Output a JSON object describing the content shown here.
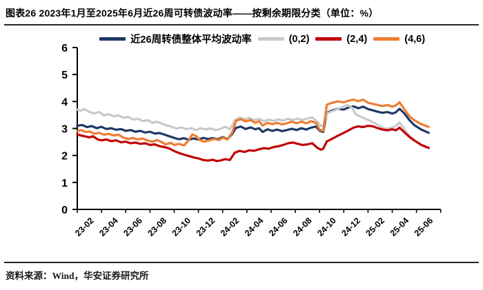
{
  "header": {
    "title": "图表26  2023年1月至2025年6月近26周可转债波动率——按剩余期限分类（单位：%）"
  },
  "footer": {
    "source": "资料来源：Wind，华安证券研究所"
  },
  "chart_data": {
    "type": "line",
    "title": "近26周可转债波动率——按剩余期限分类",
    "unit": "%",
    "xlabel": "",
    "ylabel": "",
    "ylim": [
      0,
      6
    ],
    "y_ticks": [
      0,
      1,
      2,
      3,
      4,
      5,
      6
    ],
    "grid": false,
    "legend_position": "top",
    "x_unit": "months since 2023-01",
    "x_tick_labels": [
      "23-02",
      "23-04",
      "23-06",
      "23-08",
      "23-10",
      "23-12",
      "24-02",
      "24-04",
      "24-06",
      "24-08",
      "24-10",
      "24-12",
      "25-02",
      "25-04",
      "25-06"
    ],
    "series": [
      {
        "name": "近26周转债整体平均波动率",
        "color": "#1F3864",
        "points": [
          [
            0,
            3.1
          ],
          [
            0.4,
            3.13
          ],
          [
            0.8,
            3.05
          ],
          [
            1.2,
            3.09
          ],
          [
            1.6,
            3.01
          ],
          [
            2,
            3.06
          ],
          [
            2.4,
            2.98
          ],
          [
            2.8,
            3.01
          ],
          [
            3.2,
            2.95
          ],
          [
            3.6,
            2.98
          ],
          [
            4,
            2.91
          ],
          [
            4.4,
            2.94
          ],
          [
            4.8,
            2.88
          ],
          [
            5.2,
            2.91
          ],
          [
            5.6,
            2.85
          ],
          [
            6,
            2.88
          ],
          [
            6.4,
            2.81
          ],
          [
            6.8,
            2.83
          ],
          [
            7.2,
            2.77
          ],
          [
            7.6,
            2.71
          ],
          [
            8,
            2.65
          ],
          [
            8.4,
            2.6
          ],
          [
            8.8,
            2.64
          ],
          [
            9.2,
            2.58
          ],
          [
            9.6,
            2.63
          ],
          [
            10,
            2.59
          ],
          [
            10.4,
            2.65
          ],
          [
            10.8,
            2.61
          ],
          [
            11.2,
            2.64
          ],
          [
            11.6,
            2.6
          ],
          [
            12,
            2.68
          ],
          [
            12.4,
            2.61
          ],
          [
            12.8,
            2.8
          ],
          [
            13.1,
            3.02
          ],
          [
            13.5,
            3.07
          ],
          [
            13.9,
            2.98
          ],
          [
            14.3,
            3.04
          ],
          [
            14.7,
            2.97
          ],
          [
            15,
            3.01
          ],
          [
            15.3,
            2.87
          ],
          [
            15.7,
            2.97
          ],
          [
            16.1,
            2.91
          ],
          [
            16.5,
            2.96
          ],
          [
            16.9,
            2.9
          ],
          [
            17.3,
            2.94
          ],
          [
            17.7,
            2.99
          ],
          [
            18.1,
            2.94
          ],
          [
            18.5,
            3.01
          ],
          [
            18.9,
            2.96
          ],
          [
            19.3,
            3.03
          ],
          [
            19.7,
            3.07
          ],
          [
            20,
            2.92
          ],
          [
            20.3,
            2.87
          ],
          [
            20.6,
            3.58
          ],
          [
            21,
            3.66
          ],
          [
            21.5,
            3.73
          ],
          [
            22,
            3.7
          ],
          [
            22.4,
            3.78
          ],
          [
            22.8,
            3.82
          ],
          [
            23.2,
            3.75
          ],
          [
            23.6,
            3.81
          ],
          [
            24,
            3.72
          ],
          [
            24.4,
            3.67
          ],
          [
            24.8,
            3.62
          ],
          [
            25.2,
            3.58
          ],
          [
            25.6,
            3.61
          ],
          [
            26,
            3.55
          ],
          [
            26.3,
            3.6
          ],
          [
            26.6,
            3.73
          ],
          [
            27,
            3.56
          ],
          [
            27.4,
            3.32
          ],
          [
            27.8,
            3.13
          ],
          [
            28.4,
            2.96
          ],
          [
            29,
            2.84
          ]
        ]
      },
      {
        "name": "(0,2)",
        "color": "#C9C9C9",
        "points": [
          [
            0,
            3.7
          ],
          [
            0.3,
            3.66
          ],
          [
            0.6,
            3.72
          ],
          [
            1,
            3.61
          ],
          [
            1.4,
            3.56
          ],
          [
            1.8,
            3.61
          ],
          [
            2.2,
            3.49
          ],
          [
            2.6,
            3.53
          ],
          [
            3,
            3.45
          ],
          [
            3.4,
            3.49
          ],
          [
            3.8,
            3.39
          ],
          [
            4.2,
            3.43
          ],
          [
            4.6,
            3.33
          ],
          [
            5,
            3.36
          ],
          [
            5.4,
            3.27
          ],
          [
            5.8,
            3.31
          ],
          [
            6.2,
            3.21
          ],
          [
            6.6,
            3.25
          ],
          [
            7,
            3.17
          ],
          [
            7.4,
            3.11
          ],
          [
            7.8,
            3.06
          ],
          [
            8.2,
            3.0
          ],
          [
            8.6,
            3.04
          ],
          [
            9,
            2.97
          ],
          [
            9.4,
            3.01
          ],
          [
            9.8,
            2.94
          ],
          [
            10.2,
            3.01
          ],
          [
            10.6,
            2.96
          ],
          [
            11,
            3.01
          ],
          [
            11.4,
            2.94
          ],
          [
            11.8,
            2.98
          ],
          [
            12.2,
            3.06
          ],
          [
            12.6,
            2.97
          ],
          [
            13,
            3.3
          ],
          [
            13.4,
            3.41
          ],
          [
            13.8,
            3.34
          ],
          [
            14.2,
            3.39
          ],
          [
            14.6,
            3.31
          ],
          [
            15,
            3.36
          ],
          [
            15.4,
            3.27
          ],
          [
            15.8,
            3.33
          ],
          [
            16.2,
            3.28
          ],
          [
            16.6,
            3.34
          ],
          [
            17,
            3.29
          ],
          [
            17.4,
            3.36
          ],
          [
            17.8,
            3.31
          ],
          [
            18.2,
            3.37
          ],
          [
            18.6,
            3.31
          ],
          [
            19,
            3.37
          ],
          [
            19.4,
            3.41
          ],
          [
            19.8,
            3.26
          ],
          [
            20.1,
            3.1
          ],
          [
            20.3,
            3.06
          ],
          [
            20.6,
            3.55
          ],
          [
            21,
            3.63
          ],
          [
            21.5,
            3.72
          ],
          [
            22,
            3.82
          ],
          [
            22.3,
            3.87
          ],
          [
            22.7,
            3.76
          ],
          [
            23,
            3.52
          ],
          [
            23.4,
            3.44
          ],
          [
            23.8,
            3.36
          ],
          [
            24.2,
            3.28
          ],
          [
            24.6,
            3.18
          ],
          [
            25,
            3.08
          ],
          [
            25.4,
            2.99
          ],
          [
            25.8,
            3.01
          ],
          [
            26.2,
            3.06
          ],
          [
            26.6,
            3.22
          ],
          [
            27,
            2.98
          ],
          [
            27.4,
            2.73
          ],
          [
            27.8,
            2.56
          ],
          [
            28.4,
            2.39
          ],
          [
            29,
            2.27
          ]
        ]
      },
      {
        "name": "(2,4)",
        "color": "#C00000",
        "points": [
          [
            0,
            2.78
          ],
          [
            0.3,
            2.74
          ],
          [
            0.7,
            2.7
          ],
          [
            1,
            2.67
          ],
          [
            1.3,
            2.71
          ],
          [
            1.7,
            2.59
          ],
          [
            2,
            2.56
          ],
          [
            2.4,
            2.59
          ],
          [
            2.8,
            2.53
          ],
          [
            3.2,
            2.56
          ],
          [
            3.6,
            2.49
          ],
          [
            4,
            2.51
          ],
          [
            4.4,
            2.45
          ],
          [
            4.8,
            2.48
          ],
          [
            5.2,
            2.43
          ],
          [
            5.6,
            2.45
          ],
          [
            6,
            2.39
          ],
          [
            6.4,
            2.41
          ],
          [
            6.8,
            2.34
          ],
          [
            7.2,
            2.31
          ],
          [
            7.6,
            2.26
          ],
          [
            8,
            2.16
          ],
          [
            8.4,
            2.09
          ],
          [
            8.8,
            2.03
          ],
          [
            9.2,
            1.98
          ],
          [
            9.6,
            1.93
          ],
          [
            10,
            1.89
          ],
          [
            10.4,
            1.83
          ],
          [
            10.8,
            1.81
          ],
          [
            11.2,
            1.84
          ],
          [
            11.5,
            1.79
          ],
          [
            11.8,
            1.81
          ],
          [
            12.2,
            1.86
          ],
          [
            12.6,
            1.83
          ],
          [
            13,
            2.1
          ],
          [
            13.4,
            2.17
          ],
          [
            13.8,
            2.13
          ],
          [
            14.2,
            2.19
          ],
          [
            14.6,
            2.17
          ],
          [
            15,
            2.23
          ],
          [
            15.4,
            2.27
          ],
          [
            15.8,
            2.25
          ],
          [
            16.2,
            2.31
          ],
          [
            16.6,
            2.34
          ],
          [
            17,
            2.39
          ],
          [
            17.4,
            2.45
          ],
          [
            17.8,
            2.48
          ],
          [
            18.2,
            2.43
          ],
          [
            18.6,
            2.39
          ],
          [
            19,
            2.41
          ],
          [
            19.4,
            2.45
          ],
          [
            19.8,
            2.29
          ],
          [
            20.1,
            2.21
          ],
          [
            20.3,
            2.25
          ],
          [
            20.6,
            2.52
          ],
          [
            21,
            2.61
          ],
          [
            21.5,
            2.73
          ],
          [
            22,
            2.84
          ],
          [
            22.4,
            2.93
          ],
          [
            22.8,
            3.03
          ],
          [
            23.2,
            3.08
          ],
          [
            23.6,
            3.05
          ],
          [
            24,
            3.1
          ],
          [
            24.4,
            3.08
          ],
          [
            24.8,
            3.01
          ],
          [
            25.2,
            2.96
          ],
          [
            25.6,
            2.93
          ],
          [
            26,
            2.97
          ],
          [
            26.3,
            2.93
          ],
          [
            26.6,
            3.03
          ],
          [
            27,
            2.86
          ],
          [
            27.4,
            2.69
          ],
          [
            27.8,
            2.56
          ],
          [
            28.4,
            2.39
          ],
          [
            29,
            2.28
          ]
        ]
      },
      {
        "name": "(4,6)",
        "color": "#ED7D31",
        "points": [
          [
            0,
            2.9
          ],
          [
            0.3,
            2.94
          ],
          [
            0.7,
            2.87
          ],
          [
            1,
            2.89
          ],
          [
            1.4,
            2.81
          ],
          [
            1.8,
            2.84
          ],
          [
            2.2,
            2.77
          ],
          [
            2.6,
            2.8
          ],
          [
            3,
            2.74
          ],
          [
            3.4,
            2.77
          ],
          [
            3.8,
            2.66
          ],
          [
            4.2,
            2.61
          ],
          [
            4.6,
            2.65
          ],
          [
            5,
            2.59
          ],
          [
            5.4,
            2.63
          ],
          [
            5.8,
            2.55
          ],
          [
            6.2,
            2.51
          ],
          [
            6.6,
            2.57
          ],
          [
            7,
            2.49
          ],
          [
            7.3,
            2.41
          ],
          [
            7.7,
            2.47
          ],
          [
            8,
            2.39
          ],
          [
            8.4,
            2.43
          ],
          [
            8.8,
            2.37
          ],
          [
            9.2,
            2.56
          ],
          [
            9.5,
            2.78
          ],
          [
            9.8,
            2.72
          ],
          [
            10.1,
            2.57
          ],
          [
            10.5,
            2.51
          ],
          [
            10.9,
            2.56
          ],
          [
            11.3,
            2.61
          ],
          [
            11.7,
            2.57
          ],
          [
            12,
            2.66
          ],
          [
            12.4,
            2.59
          ],
          [
            12.8,
            2.86
          ],
          [
            13.1,
            3.28
          ],
          [
            13.5,
            3.35
          ],
          [
            13.9,
            3.26
          ],
          [
            14.3,
            3.31
          ],
          [
            14.7,
            3.21
          ],
          [
            15,
            3.27
          ],
          [
            15.3,
            3.11
          ],
          [
            15.7,
            3.21
          ],
          [
            16.1,
            3.16
          ],
          [
            16.5,
            3.21
          ],
          [
            16.9,
            3.15
          ],
          [
            17.3,
            3.19
          ],
          [
            17.7,
            3.25
          ],
          [
            18.1,
            3.19
          ],
          [
            18.5,
            3.25
          ],
          [
            18.9,
            3.19
          ],
          [
            19.3,
            3.27
          ],
          [
            19.7,
            3.21
          ],
          [
            20,
            2.96
          ],
          [
            20.3,
            2.91
          ],
          [
            20.6,
            3.88
          ],
          [
            21,
            3.95
          ],
          [
            21.5,
            4.0
          ],
          [
            22,
            3.97
          ],
          [
            22.4,
            4.03
          ],
          [
            22.8,
            4.07
          ],
          [
            23.2,
            4.01
          ],
          [
            23.6,
            4.07
          ],
          [
            24,
            3.95
          ],
          [
            24.4,
            3.91
          ],
          [
            24.8,
            3.87
          ],
          [
            25.2,
            3.83
          ],
          [
            25.6,
            3.87
          ],
          [
            26,
            3.81
          ],
          [
            26.3,
            3.85
          ],
          [
            26.6,
            3.97
          ],
          [
            27,
            3.71
          ],
          [
            27.4,
            3.46
          ],
          [
            27.8,
            3.31
          ],
          [
            28.4,
            3.16
          ],
          [
            29,
            3.06
          ]
        ]
      }
    ]
  }
}
